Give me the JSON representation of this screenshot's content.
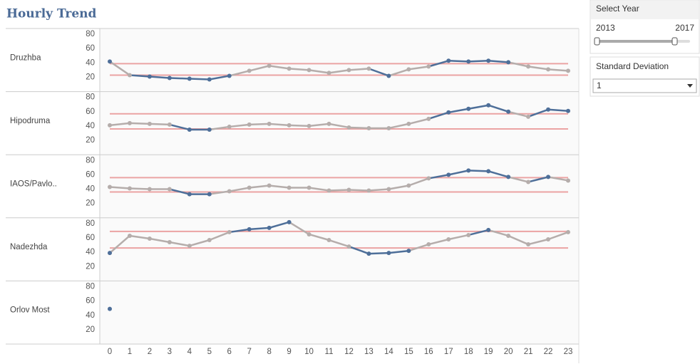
{
  "title": "Hourly Trend",
  "chart_data": [
    {
      "type": "line",
      "label": "Druzhba",
      "ylim": [
        0,
        88
      ],
      "yticks": [
        20,
        40,
        60,
        80
      ],
      "reference_lines": [
        39,
        23
      ],
      "values": [
        42,
        23,
        21,
        19,
        18,
        17,
        22,
        29,
        36,
        32,
        30,
        26,
        30,
        32,
        22,
        31,
        35,
        43,
        42,
        43,
        41,
        35,
        31,
        29
      ]
    },
    {
      "type": "line",
      "label": "Hipodruma",
      "ylim": [
        0,
        88
      ],
      "yticks": [
        20,
        40,
        60,
        80
      ],
      "reference_lines": [
        57,
        36
      ],
      "values": [
        41,
        44,
        43,
        42,
        35,
        35,
        39,
        42,
        43,
        41,
        40,
        43,
        38,
        37,
        37,
        43,
        50,
        59,
        64,
        69,
        60,
        53,
        63,
        61
      ]
    },
    {
      "type": "line",
      "label": "IAOS/Pavlo..",
      "ylim": [
        0,
        88
      ],
      "yticks": [
        20,
        40,
        60,
        80
      ],
      "reference_lines": [
        56,
        36
      ],
      "values": [
        43,
        41,
        40,
        40,
        33,
        33,
        37,
        42,
        45,
        42,
        42,
        38,
        39,
        38,
        40,
        45,
        55,
        60,
        66,
        65,
        57,
        50,
        57,
        52
      ]
    },
    {
      "type": "line",
      "label": "Nadezhda",
      "ylim": [
        0,
        88
      ],
      "yticks": [
        20,
        40,
        60,
        80
      ],
      "reference_lines": [
        69,
        46
      ],
      "values": [
        39,
        63,
        59,
        54,
        49,
        57,
        68,
        72,
        74,
        82,
        65,
        57,
        48,
        38,
        39,
        42,
        51,
        58,
        64,
        71,
        63,
        51,
        58,
        68
      ]
    },
    {
      "type": "line",
      "label": "Orlov Most",
      "ylim": [
        0,
        88
      ],
      "yticks": [
        20,
        40,
        60,
        80
      ],
      "reference_lines": [],
      "categories": [
        "0",
        "1",
        "2",
        "3",
        "4",
        "5",
        "6",
        "7",
        "8",
        "9",
        "10",
        "11",
        "12",
        "13",
        "14",
        "15",
        "16",
        "17",
        "18",
        "19",
        "20",
        "21",
        "22",
        "23"
      ],
      "values": [
        49,
        null,
        null,
        null,
        null,
        null,
        null,
        null,
        null,
        null,
        null,
        null,
        null,
        null,
        null,
        null,
        null,
        null,
        null,
        null,
        null,
        null,
        null,
        null
      ]
    }
  ],
  "colors": {
    "normal": "#b5adab",
    "outside": "#4e6f99",
    "reference": "#eba3a3"
  },
  "controls": {
    "select_year": {
      "label": "Select Year",
      "min": "2013",
      "max": "2017"
    },
    "standard_deviation": {
      "label": "Standard Deviation",
      "value": "1"
    }
  }
}
